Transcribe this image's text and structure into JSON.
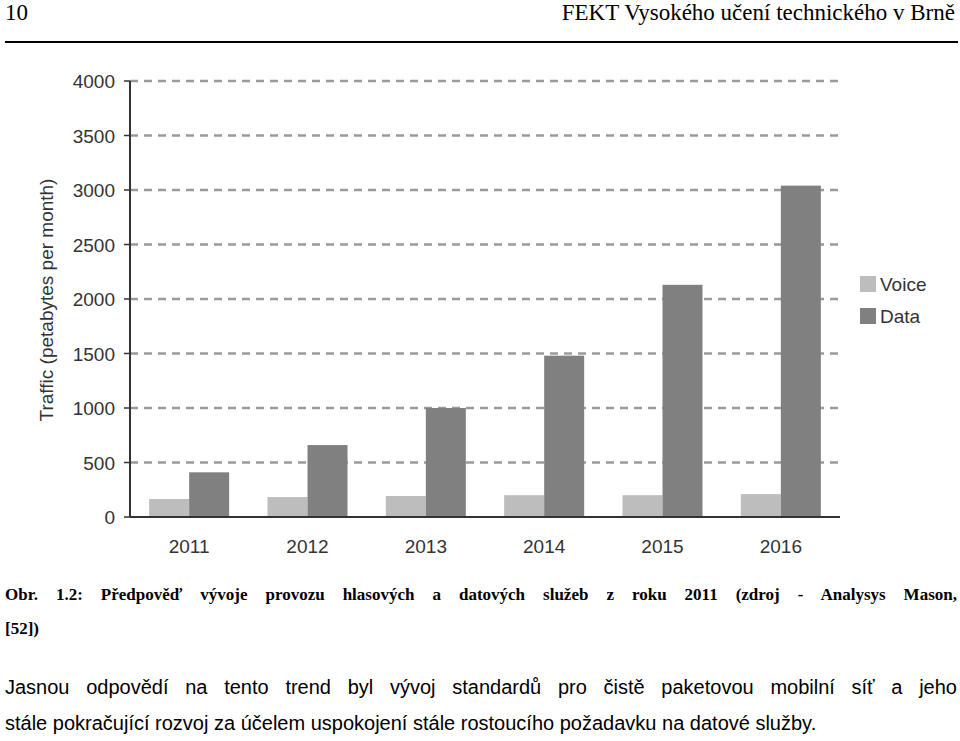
{
  "header": {
    "page": "10",
    "title": "FEKT Vysokého učení technického v Brně"
  },
  "chart_data": {
    "type": "bar",
    "y_label": "Traffic (petabytes per month)",
    "categories": [
      "2011",
      "2012",
      "2013",
      "2014",
      "2015",
      "2016"
    ],
    "series": [
      {
        "name": "Voice",
        "color": "#bdbdbd",
        "values": [
          165,
          183,
          193,
          200,
          200,
          210
        ]
      },
      {
        "name": "Data",
        "color": "#808080",
        "values": [
          410,
          660,
          1000,
          1480,
          2130,
          3040
        ]
      }
    ],
    "ylim": [
      0,
      4000
    ],
    "yticks": [
      0,
      500,
      1000,
      1500,
      2000,
      2500,
      3000,
      3500,
      4000
    ],
    "grid": true,
    "legend": "right"
  },
  "caption": [
    "Obr. 1.2: Předpověď vývoje provozu hlasových a datových služeb z roku 2011 (zdroj - Analysys Mason,",
    "[52])"
  ],
  "body": [
    "Jasnou odpovědí na tento trend byl vývoj standardů pro čistě paketovou mobilní síť a jeho",
    "stále pokračující rozvoj za účelem uspokojení stále rostoucího požadavku na datové služby."
  ]
}
